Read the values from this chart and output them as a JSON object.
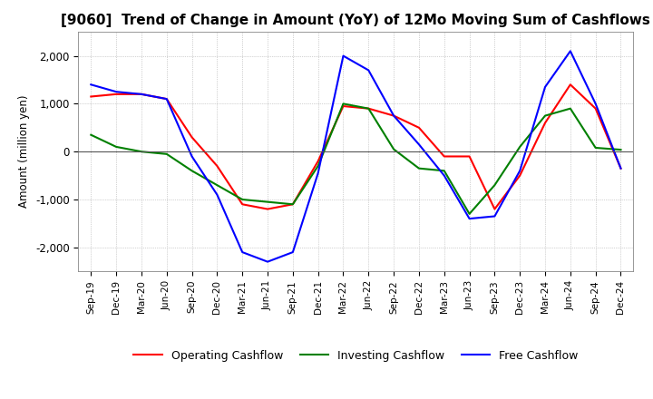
{
  "title": "[9060]  Trend of Change in Amount (YoY) of 12Mo Moving Sum of Cashflows",
  "ylabel": "Amount (million yen)",
  "x_labels": [
    "Sep-19",
    "Dec-19",
    "Mar-20",
    "Jun-20",
    "Sep-20",
    "Dec-20",
    "Mar-21",
    "Jun-21",
    "Sep-21",
    "Dec-21",
    "Mar-22",
    "Jun-22",
    "Sep-22",
    "Dec-22",
    "Mar-23",
    "Jun-23",
    "Sep-23",
    "Dec-23",
    "Mar-24",
    "Jun-24",
    "Sep-24",
    "Dec-24"
  ],
  "operating": [
    1150,
    1200,
    1200,
    1100,
    300,
    -300,
    -1100,
    -1200,
    -1100,
    -200,
    950,
    900,
    750,
    500,
    -100,
    -100,
    -1200,
    -500,
    600,
    1400,
    900,
    -350
  ],
  "investing": [
    350,
    100,
    0,
    -50,
    -400,
    -700,
    -1000,
    -1050,
    -1100,
    -300,
    1000,
    900,
    50,
    -350,
    -400,
    -1300,
    -700,
    100,
    750,
    900,
    80,
    40
  ],
  "free": [
    1400,
    1250,
    1200,
    1100,
    -100,
    -900,
    -2100,
    -2300,
    -2100,
    -450,
    2000,
    1700,
    750,
    150,
    -500,
    -1400,
    -1350,
    -400,
    1350,
    2100,
    1000,
    -350
  ],
  "op_color": "#ff0000",
  "inv_color": "#008000",
  "free_color": "#0000ff",
  "ylim": [
    -2500,
    2500
  ],
  "yticks": [
    -2000,
    -1000,
    0,
    1000,
    2000
  ],
  "grid_color": "#aaaaaa",
  "bg_color": "#ffffff",
  "title_fontsize": 11,
  "legend_labels": [
    "Operating Cashflow",
    "Investing Cashflow",
    "Free Cashflow"
  ]
}
